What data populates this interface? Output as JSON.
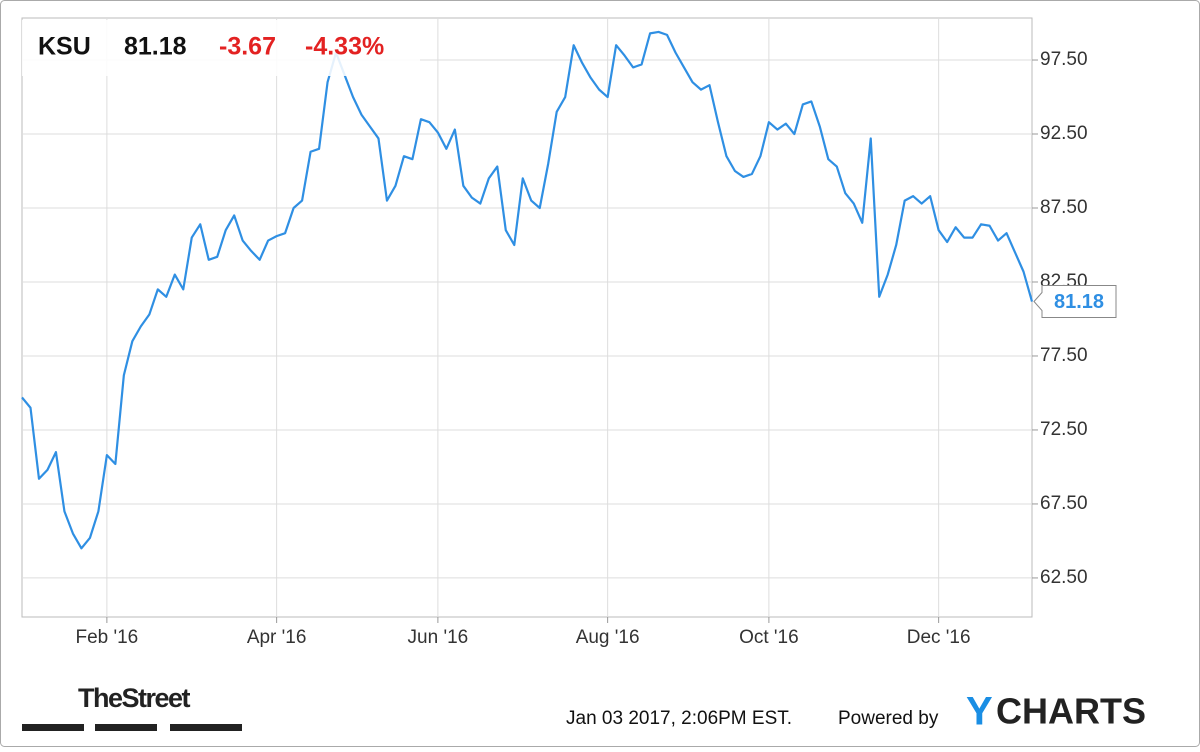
{
  "header": {
    "ticker": "KSU",
    "price": "81.18",
    "change": "-3.67",
    "change_pct": "-4.33%"
  },
  "footer": {
    "source": "TheStreet",
    "timestamp": "Jan 03 2017, 2:06PM EST.",
    "powered": "Powered by",
    "brand_first": "Y",
    "brand_rest": "CHARTS"
  },
  "chart_data": {
    "type": "line",
    "categories": [
      null,
      null,
      null,
      null,
      null,
      null,
      null,
      null,
      null,
      null,
      "Feb '16",
      null,
      null,
      null,
      null,
      null,
      null,
      null,
      null,
      null,
      null,
      null,
      null,
      null,
      null,
      null,
      null,
      null,
      null,
      null,
      "Apr '16",
      null,
      null,
      null,
      null,
      null,
      null,
      null,
      null,
      null,
      null,
      null,
      null,
      null,
      null,
      null,
      null,
      null,
      null,
      "Jun '16",
      null,
      null,
      null,
      null,
      null,
      null,
      null,
      null,
      null,
      null,
      null,
      null,
      null,
      null,
      null,
      null,
      null,
      null,
      null,
      "Aug '16",
      null,
      null,
      null,
      null,
      null,
      null,
      null,
      null,
      null,
      null,
      null,
      null,
      null,
      null,
      null,
      null,
      null,
      null,
      "Oct '16",
      null,
      null,
      null,
      null,
      null,
      null,
      null,
      null,
      null,
      null,
      null,
      null,
      null,
      null,
      null,
      null,
      null,
      null,
      null,
      "Dec '16",
      null,
      null,
      null,
      null,
      null,
      null,
      null,
      null,
      null,
      null,
      null
    ],
    "series": [
      {
        "name": "KSU",
        "color": "#2f8fe3",
        "values": [
          74.7,
          74.0,
          69.2,
          69.8,
          71.0,
          67.0,
          65.5,
          64.5,
          65.2,
          67.0,
          70.8,
          70.2,
          76.2,
          78.5,
          79.5,
          80.3,
          82.0,
          81.5,
          83.0,
          82.0,
          85.5,
          86.4,
          84.0,
          84.2,
          86.0,
          87.0,
          85.3,
          84.6,
          84.0,
          85.3,
          85.6,
          85.8,
          87.5,
          88.0,
          91.3,
          91.5,
          96.0,
          98.0,
          96.5,
          95.0,
          93.8,
          93.0,
          92.2,
          88.0,
          89.0,
          91.0,
          90.8,
          93.5,
          93.3,
          92.6,
          91.5,
          92.8,
          89.0,
          88.2,
          87.8,
          89.5,
          90.3,
          86.0,
          85.0,
          89.5,
          88.0,
          87.5,
          90.5,
          94.0,
          95.0,
          98.5,
          97.3,
          96.3,
          95.5,
          95.0,
          98.5,
          97.8,
          97.0,
          97.2,
          99.3,
          99.4,
          99.2,
          98.0,
          97.0,
          96.0,
          95.5,
          95.8,
          93.3,
          91.0,
          90.0,
          89.6,
          89.8,
          91.0,
          93.3,
          92.8,
          93.2,
          92.5,
          94.5,
          94.7,
          93.0,
          90.8,
          90.3,
          88.5,
          87.8,
          86.5,
          92.2,
          81.5,
          83.0,
          85.0,
          88.0,
          88.3,
          87.8,
          88.3,
          86.0,
          85.2,
          86.2,
          85.5,
          85.5,
          86.4,
          86.3,
          85.3,
          85.8,
          84.5,
          83.2,
          81.18
        ],
        "value_labels": {
          "119": "81.18"
        }
      }
    ],
    "ylim": [
      59.86,
      100.34
    ],
    "yticks": [
      {
        "value": 62.5,
        "label": "62.50"
      },
      {
        "value": 67.5,
        "label": "67.50"
      },
      {
        "value": 72.5,
        "label": "72.50"
      },
      {
        "value": 77.5,
        "label": "77.50"
      },
      {
        "value": 82.5,
        "label": "82.50"
      },
      {
        "value": 87.5,
        "label": "87.50"
      },
      {
        "value": 92.5,
        "label": "92.50"
      },
      {
        "value": 97.5,
        "label": "97.50"
      }
    ],
    "grid": true
  }
}
